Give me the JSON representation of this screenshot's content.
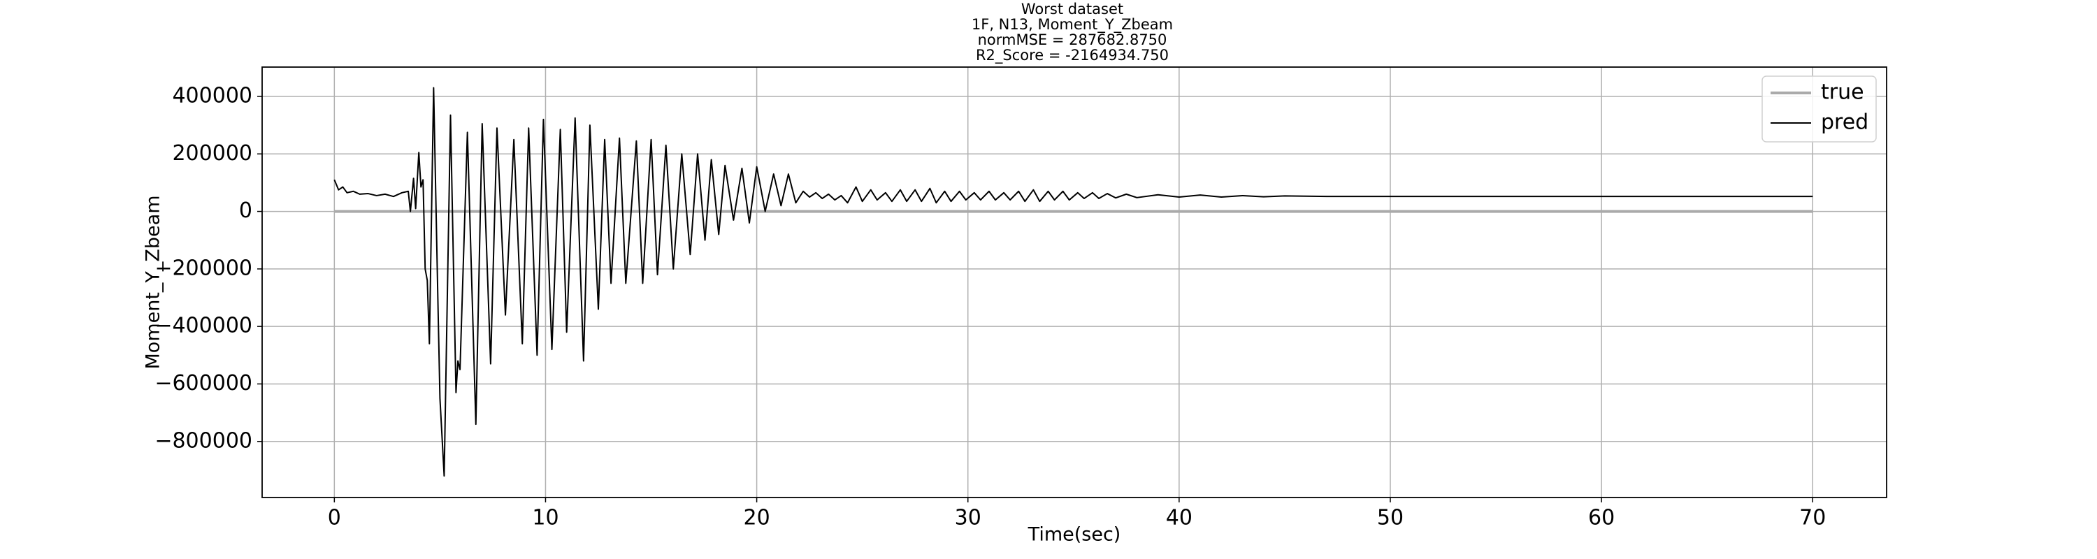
{
  "chart_data": {
    "type": "line",
    "title_lines": [
      "Worst dataset",
      "1F, N13, Moment_Y_Zbeam",
      "normMSE = 287682.8750",
      "R2_Score = -2164934.750"
    ],
    "xlabel": "Time(sec)",
    "ylabel": "Moment_Y_Zbeam",
    "xlim": [
      -3.42,
      73.5
    ],
    "ylim": [
      -995000,
      502000
    ],
    "xticks": [
      0,
      10,
      20,
      30,
      40,
      50,
      60,
      70
    ],
    "yticks": [
      {
        "value": -800000,
        "label": "−800000"
      },
      {
        "value": -600000,
        "label": "−600000"
      },
      {
        "value": -400000,
        "label": "−400000"
      },
      {
        "value": -200000,
        "label": "−200000"
      },
      0,
      200000,
      400000
    ],
    "grid": true,
    "legend": "upper right",
    "series": [
      {
        "name": "true",
        "color": "#aaaaaa",
        "x": [
          0,
          70
        ],
        "values": [
          0,
          0
        ]
      },
      {
        "name": "pred",
        "color": "#000000",
        "x": [
          0,
          0.2,
          0.4,
          0.6,
          0.9,
          1.2,
          1.6,
          2.0,
          2.4,
          2.8,
          3.2,
          3.5,
          3.6,
          3.75,
          3.85,
          4.0,
          4.1,
          4.2,
          4.3,
          4.4,
          4.5,
          4.7,
          4.9,
          5.0,
          5.2,
          5.5,
          5.76,
          5.85,
          5.95,
          6.3,
          6.7,
          7.0,
          7.4,
          7.7,
          8.1,
          8.5,
          8.9,
          9.2,
          9.6,
          9.9,
          10.3,
          10.7,
          11.0,
          11.4,
          11.8,
          12.1,
          12.5,
          12.8,
          13.1,
          13.5,
          13.8,
          14.3,
          14.6,
          15.0,
          15.3,
          15.7,
          16.05,
          16.45,
          16.85,
          17.2,
          17.55,
          17.85,
          18.2,
          18.5,
          18.9,
          19.3,
          19.65,
          20.0,
          20.4,
          20.8,
          21.15,
          21.5,
          21.85,
          22.2,
          22.5,
          22.8,
          23.1,
          23.4,
          23.7,
          24.0,
          24.3,
          24.7,
          25.0,
          25.4,
          25.7,
          26.1,
          26.4,
          26.8,
          27.1,
          27.5,
          27.8,
          28.2,
          28.5,
          28.9,
          29.2,
          29.6,
          29.9,
          30.3,
          30.6,
          31.0,
          31.3,
          31.7,
          32.0,
          32.4,
          32.7,
          33.1,
          33.4,
          33.8,
          34.1,
          34.5,
          34.8,
          35.2,
          35.5,
          35.9,
          36.2,
          36.6,
          37.0,
          37.5,
          38,
          39,
          40,
          41,
          42,
          43,
          44,
          45,
          47,
          50,
          60,
          70
        ],
        "values": [
          110000,
          75000,
          85000,
          65000,
          70000,
          60000,
          62000,
          55000,
          60000,
          52000,
          65000,
          70000,
          0,
          115000,
          10000,
          205000,
          85000,
          110000,
          -200000,
          -240000,
          -460000,
          430000,
          -300000,
          -650000,
          -920000,
          335000,
          -630000,
          -520000,
          -550000,
          275000,
          -740000,
          305000,
          -530000,
          290000,
          -360000,
          250000,
          -460000,
          290000,
          -500000,
          320000,
          -480000,
          285000,
          -420000,
          325000,
          -520000,
          300000,
          -340000,
          250000,
          -250000,
          255000,
          -250000,
          245000,
          -250000,
          250000,
          -220000,
          230000,
          -200000,
          200000,
          -150000,
          200000,
          -100000,
          180000,
          -80000,
          160000,
          -30000,
          150000,
          -40000,
          155000,
          0,
          130000,
          20000,
          130000,
          30000,
          70000,
          50000,
          65000,
          45000,
          60000,
          40000,
          55000,
          30000,
          85000,
          35000,
          75000,
          40000,
          65000,
          35000,
          75000,
          35000,
          75000,
          35000,
          80000,
          30000,
          70000,
          35000,
          70000,
          40000,
          65000,
          40000,
          70000,
          40000,
          65000,
          40000,
          70000,
          35000,
          75000,
          35000,
          70000,
          40000,
          70000,
          40000,
          65000,
          45000,
          65000,
          45000,
          62000,
          47000,
          60000,
          48000,
          58000,
          50000,
          57000,
          50000,
          55000,
          51000,
          54000,
          52000,
          52000,
          52000,
          52000
        ]
      }
    ]
  }
}
